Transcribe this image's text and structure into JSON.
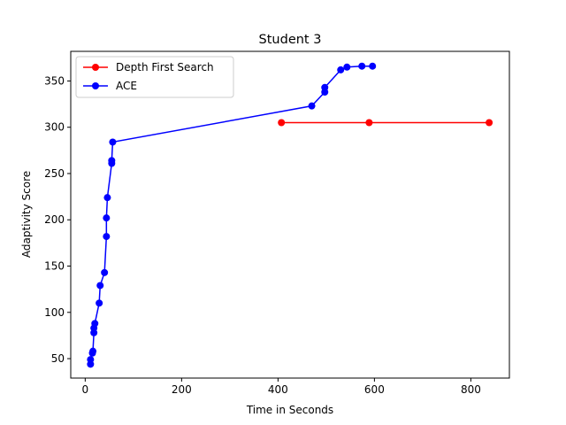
{
  "chart_data": {
    "type": "line",
    "title": "Student 3",
    "x_label": "Time in Seconds",
    "y_label": "Adaptivity Score",
    "series": [
      {
        "name": "Depth First Search",
        "color": "#ff0000",
        "x": [
          407,
          589,
          838
        ],
        "values": [
          305,
          305,
          305
        ]
      },
      {
        "name": "ACE",
        "color": "#0000ff",
        "x": [
          11,
          11,
          15,
          16,
          18,
          18,
          20,
          29,
          31,
          40,
          44,
          44,
          46,
          55,
          55,
          57,
          470,
          497,
          497,
          530,
          543,
          574,
          596
        ],
        "values": [
          44,
          49,
          56,
          58,
          78,
          83,
          88,
          110,
          129,
          143,
          182,
          202,
          224,
          261,
          264,
          284,
          323,
          338,
          343,
          362,
          365,
          366,
          366
        ]
      }
    ],
    "xlim": [
      -30,
      880
    ],
    "ylim": [
      29,
      382
    ],
    "xticks": [
      0,
      200,
      400,
      600,
      800
    ],
    "yticks": [
      50,
      100,
      150,
      200,
      250,
      300,
      350
    ],
    "legend": "upper left"
  }
}
